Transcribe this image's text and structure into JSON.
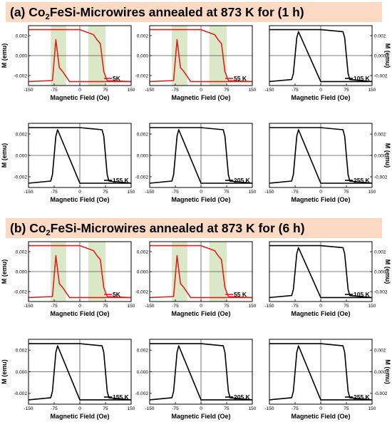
{
  "banners": [
    {
      "prefix": "(a) Co",
      "sub1": "2",
      "middle": "FeSi-Microwires annealed at 873 K for (1 h)"
    },
    {
      "prefix": "(b) Co",
      "sub1": "2",
      "middle": "FeSi-Microwires annealed at 873 K for (6 h)"
    }
  ],
  "colors": {
    "red": "#e0201c",
    "black": "#000000",
    "band": "#dbe8c8",
    "banner": "#fbd9c3"
  },
  "axis_text": {
    "xlabel": "Magnetic Field (Oe)",
    "ylabel": "M (emu)"
  },
  "chart_data": [
    {
      "panel": "a",
      "type": "line",
      "label": "5K",
      "color": "red",
      "ylabel_side": "left",
      "shaded_bands": [
        [
          -85,
          -40
        ],
        [
          25,
          75
        ]
      ],
      "xlim": [
        -150,
        150
      ],
      "ylim": [
        -0.003,
        0.003
      ],
      "xticks": [
        -150,
        -75,
        0,
        75,
        150
      ],
      "yticks": [
        0.002,
        0.0,
        -0.002
      ],
      "x": [
        -150,
        -80,
        -70,
        -60,
        -50,
        -40,
        -30,
        0,
        40,
        50,
        60,
        70,
        80,
        150
      ],
      "y_desc": [
        0.0026,
        0.0026,
        0.0026,
        0.0026,
        0.0026,
        0.0026,
        0.0026,
        0.0026,
        0.0021,
        0.0016,
        0.0012,
        -0.0016,
        -0.0025,
        -0.0026
      ],
      "y_asc": [
        -0.0026,
        -0.0025,
        0.0016,
        -0.0012,
        -0.0016,
        -0.0021,
        -0.0026,
        -0.0026,
        -0.0026,
        -0.0026,
        -0.0026,
        -0.0026,
        -0.0026,
        -0.0026
      ]
    },
    {
      "panel": "a",
      "type": "line",
      "label": "55 K",
      "color": "red",
      "ylabel_side": "none",
      "shaded_bands": [
        [
          -85,
          -40
        ],
        [
          25,
          75
        ]
      ],
      "xlim": [
        -150,
        150
      ],
      "ylim": [
        -0.003,
        0.003
      ],
      "xticks": [
        -150,
        -75,
        0,
        75,
        150
      ],
      "yticks": [
        0.002,
        0.0,
        -0.002
      ],
      "x": [
        -150,
        -80,
        -70,
        -60,
        -50,
        -40,
        -30,
        0,
        40,
        50,
        60,
        70,
        80,
        150
      ],
      "y_desc": [
        0.0026,
        0.0026,
        0.0026,
        0.0026,
        0.0026,
        0.0026,
        0.0026,
        0.0026,
        0.0021,
        0.0016,
        0.0012,
        -0.0016,
        -0.0025,
        -0.0026
      ],
      "y_asc": [
        -0.0026,
        -0.0025,
        0.0016,
        -0.0012,
        -0.0016,
        -0.0021,
        -0.0026,
        -0.0026,
        -0.0026,
        -0.0026,
        -0.0026,
        -0.0026,
        -0.0026,
        -0.0026
      ]
    },
    {
      "panel": "a",
      "type": "line",
      "label": "105 K",
      "color": "black",
      "ylabel_side": "right",
      "shaded_bands": [],
      "xlim": [
        -150,
        150
      ],
      "ylim": [
        -0.003,
        0.003
      ],
      "xticks": [
        -150,
        -75,
        0,
        75,
        150
      ],
      "yticks": [
        0.002,
        0.0,
        -0.002
      ],
      "x": [
        -150,
        -85,
        -80,
        -75,
        -70,
        -65,
        0,
        65,
        70,
        75,
        80,
        85,
        150
      ],
      "y_desc": [
        0.0026,
        0.0026,
        0.0026,
        0.0026,
        0.0026,
        0.0026,
        0.0026,
        0.0024,
        0.0018,
        0.0,
        -0.0018,
        -0.0024,
        -0.0026
      ],
      "y_asc": [
        -0.0026,
        -0.0024,
        -0.0018,
        0.0,
        0.0018,
        0.0024,
        -0.0026,
        -0.0026,
        -0.0026,
        -0.0026,
        -0.0026,
        -0.0026,
        -0.0026
      ]
    },
    {
      "panel": "a",
      "type": "line",
      "label": "155 K",
      "color": "black",
      "ylabel_side": "left",
      "shaded_bands": [],
      "xlim": [
        -150,
        150
      ],
      "ylim": [
        -0.003,
        0.003
      ],
      "xticks": [
        -150,
        -75,
        0,
        75,
        150
      ],
      "yticks": [
        0.002,
        0.0,
        -0.002
      ],
      "x": [
        -150,
        -85,
        -80,
        -75,
        -70,
        -65,
        0,
        65,
        70,
        75,
        80,
        85,
        150
      ],
      "y_desc": [
        0.0026,
        0.0026,
        0.0026,
        0.0026,
        0.0026,
        0.0026,
        0.0026,
        0.0024,
        0.0018,
        0.0,
        -0.0018,
        -0.0024,
        -0.0026
      ],
      "y_asc": [
        -0.0026,
        -0.0024,
        -0.0018,
        0.0,
        0.0018,
        0.0024,
        -0.0026,
        -0.0026,
        -0.0026,
        -0.0026,
        -0.0026,
        -0.0026,
        -0.0026
      ]
    },
    {
      "panel": "a",
      "type": "line",
      "label": "205 K",
      "color": "black",
      "ylabel_side": "none",
      "shaded_bands": [],
      "xlim": [
        -150,
        150
      ],
      "ylim": [
        -0.003,
        0.003
      ],
      "xticks": [
        -150,
        -75,
        0,
        75,
        150
      ],
      "yticks": [
        0.002,
        0.0,
        -0.002
      ],
      "x": [
        -150,
        -85,
        -80,
        -75,
        -70,
        -65,
        0,
        65,
        70,
        75,
        80,
        85,
        150
      ],
      "y_desc": [
        0.0026,
        0.0026,
        0.0026,
        0.0026,
        0.0026,
        0.0026,
        0.0026,
        0.0024,
        0.0018,
        0.0,
        -0.0018,
        -0.0024,
        -0.0026
      ],
      "y_asc": [
        -0.0026,
        -0.0024,
        -0.0018,
        0.0,
        0.0018,
        0.0024,
        -0.0026,
        -0.0026,
        -0.0026,
        -0.0026,
        -0.0026,
        -0.0026,
        -0.0026
      ]
    },
    {
      "panel": "a",
      "type": "line",
      "label": "255 K",
      "color": "black",
      "ylabel_side": "right",
      "shaded_bands": [],
      "xlim": [
        -150,
        150
      ],
      "ylim": [
        -0.003,
        0.003
      ],
      "xticks": [
        -150,
        -75,
        0,
        75,
        150
      ],
      "yticks": [
        0.002,
        0.0,
        -0.002
      ],
      "x": [
        -150,
        -85,
        -80,
        -75,
        -70,
        -65,
        0,
        65,
        70,
        75,
        80,
        85,
        150
      ],
      "y_desc": [
        0.0026,
        0.0026,
        0.0026,
        0.0026,
        0.0026,
        0.0026,
        0.0026,
        0.0024,
        0.0018,
        0.0,
        -0.0018,
        -0.0024,
        -0.0026
      ],
      "y_asc": [
        -0.0026,
        -0.0024,
        -0.0018,
        0.0,
        0.0018,
        0.0024,
        -0.0026,
        -0.0026,
        -0.0026,
        -0.0026,
        -0.0026,
        -0.0026,
        -0.0026
      ]
    },
    {
      "panel": "b",
      "type": "line",
      "label": "5K",
      "color": "red",
      "ylabel_side": "left",
      "shaded_bands": [
        [
          -85,
          -40
        ],
        [
          25,
          75
        ]
      ],
      "xlim": [
        -150,
        150
      ],
      "ylim": [
        -0.003,
        0.003
      ],
      "xticks": [
        -150,
        -75,
        0,
        75,
        150
      ],
      "yticks": [
        0.002,
        0.0,
        -0.002
      ],
      "x": [
        -150,
        -80,
        -70,
        -60,
        -50,
        -40,
        -30,
        0,
        40,
        50,
        60,
        70,
        80,
        150
      ],
      "y_desc": [
        0.0026,
        0.0026,
        0.0026,
        0.0026,
        0.0026,
        0.0026,
        0.0026,
        0.0026,
        0.0021,
        0.0016,
        0.0012,
        -0.0016,
        -0.0025,
        -0.0026
      ],
      "y_asc": [
        -0.0026,
        -0.0025,
        0.0016,
        -0.0012,
        -0.0016,
        -0.0021,
        -0.0026,
        -0.0026,
        -0.0026,
        -0.0026,
        -0.0026,
        -0.0026,
        -0.0026,
        -0.0026
      ]
    },
    {
      "panel": "b",
      "type": "line",
      "label": "55 K",
      "color": "red",
      "ylabel_side": "none",
      "shaded_bands": [
        [
          -85,
          -40
        ],
        [
          25,
          75
        ]
      ],
      "xlim": [
        -150,
        150
      ],
      "ylim": [
        -0.003,
        0.003
      ],
      "xticks": [
        -150,
        -75,
        0,
        75,
        150
      ],
      "yticks": [
        0.002,
        0.0,
        -0.002
      ],
      "x": [
        -150,
        -80,
        -70,
        -60,
        -50,
        -40,
        -30,
        0,
        40,
        50,
        60,
        70,
        80,
        150
      ],
      "y_desc": [
        0.0026,
        0.0026,
        0.0026,
        0.0026,
        0.0026,
        0.0026,
        0.0026,
        0.0026,
        0.0021,
        0.0016,
        0.0012,
        -0.0016,
        -0.0025,
        -0.0026
      ],
      "y_asc": [
        -0.0026,
        -0.0025,
        0.0016,
        -0.0012,
        -0.0016,
        -0.0021,
        -0.0026,
        -0.0026,
        -0.0026,
        -0.0026,
        -0.0026,
        -0.0026,
        -0.0026,
        -0.0026
      ]
    },
    {
      "panel": "b",
      "type": "line",
      "label": "105 K",
      "color": "black",
      "ylabel_side": "right",
      "shaded_bands": [],
      "xlim": [
        -150,
        150
      ],
      "ylim": [
        -0.003,
        0.003
      ],
      "xticks": [
        -150,
        -75,
        0,
        75,
        150
      ],
      "yticks": [
        0.002,
        0.0,
        -0.002
      ],
      "x": [
        -150,
        -85,
        -80,
        -75,
        -70,
        -65,
        0,
        65,
        70,
        75,
        80,
        85,
        150
      ],
      "y_desc": [
        0.0026,
        0.0026,
        0.0026,
        0.0026,
        0.0026,
        0.0026,
        0.0026,
        0.0024,
        0.0018,
        0.0,
        -0.0018,
        -0.0024,
        -0.0026
      ],
      "y_asc": [
        -0.0026,
        -0.0024,
        -0.0018,
        0.0,
        0.0018,
        0.0024,
        -0.0026,
        -0.0026,
        -0.0026,
        -0.0026,
        -0.0026,
        -0.0026,
        -0.0026
      ]
    },
    {
      "panel": "b",
      "type": "line",
      "label": "155 K",
      "color": "black",
      "ylabel_side": "left",
      "shaded_bands": [],
      "xlim": [
        -150,
        150
      ],
      "ylim": [
        -0.003,
        0.003
      ],
      "xticks": [
        -150,
        -75,
        0,
        75,
        150
      ],
      "yticks": [
        0.002,
        0.0,
        -0.002
      ],
      "x": [
        -150,
        -85,
        -80,
        -75,
        -70,
        -65,
        0,
        65,
        70,
        75,
        80,
        85,
        150
      ],
      "y_desc": [
        0.0026,
        0.0026,
        0.0026,
        0.0026,
        0.0026,
        0.0026,
        0.0026,
        0.0024,
        0.0018,
        0.0,
        -0.0018,
        -0.0024,
        -0.0026
      ],
      "y_asc": [
        -0.0026,
        -0.0024,
        -0.0018,
        0.0,
        0.0018,
        0.0024,
        -0.0026,
        -0.0026,
        -0.0026,
        -0.0026,
        -0.0026,
        -0.0026,
        -0.0026
      ]
    },
    {
      "panel": "b",
      "type": "line",
      "label": "205 K",
      "color": "black",
      "ylabel_side": "none",
      "shaded_bands": [],
      "xlim": [
        -150,
        150
      ],
      "ylim": [
        -0.003,
        0.003
      ],
      "xticks": [
        -150,
        -75,
        0,
        75,
        150
      ],
      "yticks": [
        0.002,
        0.0,
        -0.002
      ],
      "x": [
        -150,
        -85,
        -80,
        -75,
        -70,
        -65,
        0,
        65,
        70,
        75,
        80,
        85,
        150
      ],
      "y_desc": [
        0.0026,
        0.0026,
        0.0026,
        0.0026,
        0.0026,
        0.0026,
        0.0026,
        0.0024,
        0.0018,
        0.0,
        -0.0018,
        -0.0024,
        -0.0026
      ],
      "y_asc": [
        -0.0026,
        -0.0024,
        -0.0018,
        0.0,
        0.0018,
        0.0024,
        -0.0026,
        -0.0026,
        -0.0026,
        -0.0026,
        -0.0026,
        -0.0026,
        -0.0026
      ]
    },
    {
      "panel": "b",
      "type": "line",
      "label": "255 K",
      "color": "black",
      "ylabel_side": "right",
      "shaded_bands": [],
      "xlim": [
        -150,
        150
      ],
      "ylim": [
        -0.003,
        0.003
      ],
      "xticks": [
        -150,
        -75,
        0,
        75,
        150
      ],
      "yticks": [
        0.002,
        0.0,
        -0.002
      ],
      "x": [
        -150,
        -85,
        -80,
        -75,
        -70,
        -65,
        0,
        65,
        70,
        75,
        80,
        85,
        150
      ],
      "y_desc": [
        0.0026,
        0.0026,
        0.0026,
        0.0026,
        0.0026,
        0.0026,
        0.0026,
        0.0024,
        0.0018,
        0.0,
        -0.0018,
        -0.0024,
        -0.0026
      ],
      "y_asc": [
        -0.0026,
        -0.0024,
        -0.0018,
        0.0,
        0.0018,
        0.0024,
        -0.0026,
        -0.0026,
        -0.0026,
        -0.0026,
        -0.0026,
        -0.0026,
        -0.0026
      ]
    }
  ]
}
